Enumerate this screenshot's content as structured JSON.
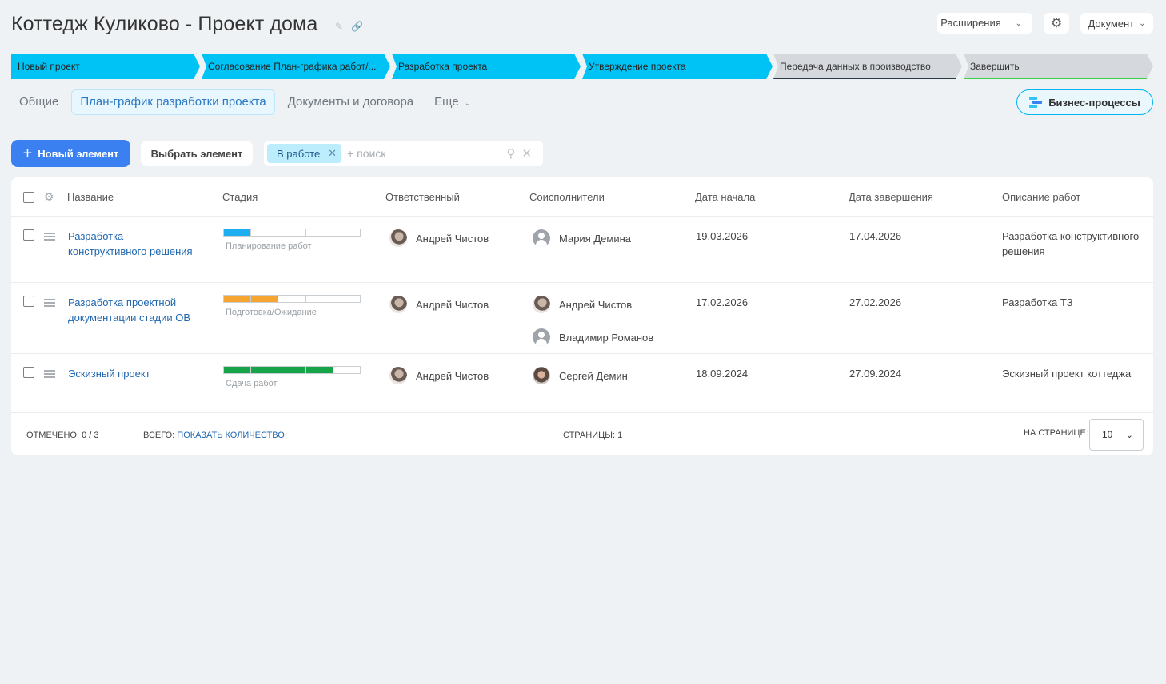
{
  "header": {
    "title": "Коттедж Куликово - Проект дома",
    "extensions_label": "Расширения",
    "document_label": "Документ"
  },
  "stages": [
    {
      "label": "Новый проект",
      "state": "active"
    },
    {
      "label": "Согласование План-графика работ/...",
      "state": "active"
    },
    {
      "label": "Разработка проекта",
      "state": "active"
    },
    {
      "label": "Утверждение проекта",
      "state": "active"
    },
    {
      "label": "Передача данных в производство",
      "state": "inactive",
      "underline": "#2b3a44"
    },
    {
      "label": "Завершить",
      "state": "inactive",
      "underline": "#3ad14a"
    }
  ],
  "tabs": {
    "general": "Общие",
    "plan": "План-график разработки проекта",
    "docs": "Документы и договора",
    "more": "Еще"
  },
  "bp_button": "Бизнес-процессы",
  "toolbar": {
    "new_label": "Новый элемент",
    "select_label": "Выбрать элемент",
    "filter_chip": "В работе",
    "search_placeholder": "+ поиск"
  },
  "columns": {
    "name": "Название",
    "stage": "Стадия",
    "responsible": "Ответственный",
    "coexecutors": "Соисполнители",
    "start": "Дата начала",
    "end": "Дата завершения",
    "desc": "Описание работ"
  },
  "rows": [
    {
      "name": "Разработка конструктивного решения",
      "stage_label": "Планирование работ",
      "stage_color": "#1eaef0",
      "stage_filled": 1,
      "stage_total": 5,
      "responsible": "Андрей Чистов",
      "coexecutors": [
        {
          "name": "Мария Демина",
          "avatar": "blank"
        }
      ],
      "start": "19.03.2026",
      "end": "17.04.2026",
      "desc": "Разработка конструктивного решения"
    },
    {
      "name": "Разработка проектной документации стадии ОВ",
      "stage_label": "Подготовка/Ожидание",
      "stage_color": "#f7a532",
      "stage_filled": 2,
      "stage_total": 5,
      "responsible": "Андрей Чистов",
      "coexecutors": [
        {
          "name": "Андрей Чистов",
          "avatar": "photo"
        },
        {
          "name": "Владимир Романов",
          "avatar": "blank"
        }
      ],
      "start": "17.02.2026",
      "end": "27.02.2026",
      "desc": "Разработка ТЗ"
    },
    {
      "name": "Эскизный проект",
      "stage_label": "Сдача работ",
      "stage_color": "#17a448",
      "stage_filled": 4,
      "stage_total": 5,
      "responsible": "Андрей Чистов",
      "coexecutors": [
        {
          "name": "Сергей Демин",
          "avatar": "photo2"
        }
      ],
      "start": "18.09.2024",
      "end": "27.09.2024",
      "desc": "Эскизный проект коттеджа"
    }
  ],
  "footer": {
    "checked_label": "Отмечено:",
    "checked_value": "0 / 3",
    "total_label": "Всего:",
    "total_link": "Показать количество",
    "pages_label": "Страницы:",
    "pages_value": "1",
    "per_page_label": "На странице:",
    "per_page_value": "10"
  }
}
